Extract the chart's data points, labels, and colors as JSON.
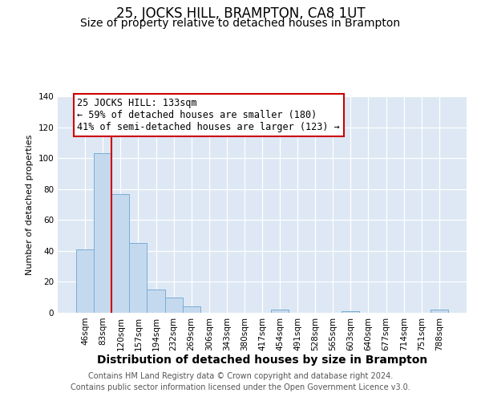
{
  "title": "25, JOCKS HILL, BRAMPTON, CA8 1UT",
  "subtitle": "Size of property relative to detached houses in Brampton",
  "xlabel": "Distribution of detached houses by size in Brampton",
  "ylabel": "Number of detached properties",
  "bar_labels": [
    "46sqm",
    "83sqm",
    "120sqm",
    "157sqm",
    "194sqm",
    "232sqm",
    "269sqm",
    "306sqm",
    "343sqm",
    "380sqm",
    "417sqm",
    "454sqm",
    "491sqm",
    "528sqm",
    "565sqm",
    "603sqm",
    "640sqm",
    "677sqm",
    "714sqm",
    "751sqm",
    "788sqm"
  ],
  "bar_values": [
    41,
    103,
    77,
    45,
    15,
    10,
    4,
    0,
    0,
    0,
    0,
    2,
    0,
    0,
    0,
    1,
    0,
    0,
    0,
    0,
    2
  ],
  "bar_color": "#c5d9ee",
  "bar_edgecolor": "#7aadd4",
  "background_color": "#dde8f4",
  "grid_color": "#ffffff",
  "annotation_line1": "25 JOCKS HILL: 133sqm",
  "annotation_line2": "← 59% of detached houses are smaller (180)",
  "annotation_line3": "41% of semi-detached houses are larger (123) →",
  "annotation_box_edgecolor": "#cc0000",
  "vline_color": "#cc0000",
  "vline_x": 1.5,
  "ylim": [
    0,
    140
  ],
  "yticks": [
    0,
    20,
    40,
    60,
    80,
    100,
    120,
    140
  ],
  "fig_facecolor": "#ffffff",
  "title_fontsize": 12,
  "subtitle_fontsize": 10,
  "xlabel_fontsize": 10,
  "ylabel_fontsize": 8,
  "tick_fontsize": 7.5,
  "annotation_fontsize": 8.5,
  "footer_fontsize": 7,
  "footer_line1": "Contains HM Land Registry data © Crown copyright and database right 2024.",
  "footer_line2": "Contains public sector information licensed under the Open Government Licence v3.0."
}
